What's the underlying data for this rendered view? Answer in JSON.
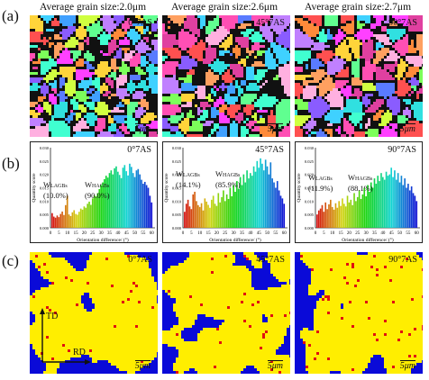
{
  "figure": {
    "row_labels": [
      "(a)",
      "(b)",
      "(c)"
    ],
    "columns": [
      {
        "title": "Average grain size:2.0μm",
        "tag": "0°7AS",
        "scale": "5μm",
        "hist_tag": "0°7AS",
        "lagb_label": "W",
        "lagb_sub": "LAGBs",
        "lagb_pct": "(10.0%)",
        "hagb_label": "W",
        "hagb_sub": "HAGBs",
        "hagb_pct": "(90.0%)",
        "kam_tag": "0°7AS",
        "kam_scale": "5μm"
      },
      {
        "title": "Average grain size:2.6μm",
        "tag": "45°7AS",
        "scale": "5μm",
        "hist_tag": "45°7AS",
        "lagb_label": "W",
        "lagb_sub": "LAGBs",
        "lagb_pct": "(14.1%)",
        "hagb_label": "W",
        "hagb_sub": "HAGBs",
        "hagb_pct": "(85.9%)",
        "kam_tag": "45°7AS",
        "kam_scale": "5μm"
      },
      {
        "title": "Average grain size:2.7μm",
        "tag": "90°7AS",
        "scale": "5μm",
        "hist_tag": "90°7AS",
        "lagb_label": "W",
        "lagb_sub": "LAGBs",
        "lagb_pct": "(11.9%)",
        "hagb_label": "W",
        "hagb_sub": "HAGBs",
        "hagb_pct": "(88.1%)",
        "kam_tag": "90°7AS",
        "kam_scale": "5μm"
      }
    ],
    "hist_axis": {
      "ylabel": "Quantity score",
      "xlabel": "Orientation difference/ (°)",
      "yticks": [
        "0.000",
        "0.005",
        "0.010",
        "0.015",
        "0.020",
        "0.025",
        "0.030"
      ],
      "xticks": [
        "0",
        "5",
        "10",
        "15",
        "20",
        "25",
        "30",
        "35",
        "40",
        "45",
        "50",
        "55",
        "60"
      ]
    },
    "direction_labels": {
      "td": "TD",
      "rd": "RD"
    }
  },
  "chart_data": [
    {
      "type": "bar",
      "xlabel": "Orientation difference/ (°)",
      "ylabel": "Quantity score",
      "ylim": [
        0,
        0.03
      ],
      "xlim": [
        0,
        62
      ],
      "values": [
        0.0055,
        0.0042,
        0.0038,
        0.0046,
        0.004,
        0.0052,
        0.0061,
        0.0048,
        0.0085,
        0.012,
        0.005,
        0.0044,
        0.0058,
        0.0066,
        0.0052,
        0.0049,
        0.006,
        0.0072,
        0.0068,
        0.008,
        0.0075,
        0.009,
        0.0098,
        0.0086,
        0.011,
        0.0122,
        0.0118,
        0.013,
        0.0145,
        0.016,
        0.017,
        0.0182,
        0.0195,
        0.0188,
        0.0205,
        0.0215,
        0.02,
        0.0223,
        0.023,
        0.021,
        0.0198,
        0.0186,
        0.0225,
        0.0235,
        0.0212,
        0.0196,
        0.024,
        0.0228,
        0.0205,
        0.019,
        0.0215,
        0.022,
        0.02,
        0.018,
        0.0165,
        0.0172,
        0.016,
        0.015,
        0.012,
        0.0095
      ]
    },
    {
      "type": "bar",
      "xlabel": "Orientation difference/ (°)",
      "ylabel": "Quantity score",
      "ylim": [
        0,
        0.03
      ],
      "xlim": [
        0,
        62
      ],
      "values": [
        0.006,
        0.009,
        0.0105,
        0.008,
        0.007,
        0.0125,
        0.0135,
        0.01,
        0.0085,
        0.0078,
        0.0092,
        0.0065,
        0.011,
        0.0098,
        0.0086,
        0.0075,
        0.0105,
        0.012,
        0.009,
        0.0082,
        0.013,
        0.0095,
        0.0115,
        0.014,
        0.01,
        0.0125,
        0.0108,
        0.015,
        0.0118,
        0.016,
        0.0135,
        0.0175,
        0.0145,
        0.019,
        0.016,
        0.02,
        0.017,
        0.0215,
        0.0185,
        0.0205,
        0.0195,
        0.023,
        0.021,
        0.025,
        0.0225,
        0.026,
        0.024,
        0.0215,
        0.0255,
        0.023,
        0.02,
        0.0245,
        0.0185,
        0.017,
        0.015,
        0.0175,
        0.014,
        0.012,
        0.011,
        0.009
      ]
    },
    {
      "type": "bar",
      "xlabel": "Orientation difference/ (°)",
      "ylabel": "Quantity score",
      "ylim": [
        0,
        0.03
      ],
      "xlim": [
        0,
        62
      ],
      "values": [
        0.005,
        0.0065,
        0.0072,
        0.0085,
        0.006,
        0.0095,
        0.007,
        0.0088,
        0.0105,
        0.0078,
        0.0068,
        0.0092,
        0.0075,
        0.01,
        0.0082,
        0.011,
        0.009,
        0.008,
        0.012,
        0.0095,
        0.0105,
        0.0085,
        0.013,
        0.01,
        0.0115,
        0.014,
        0.0108,
        0.0125,
        0.015,
        0.0118,
        0.016,
        0.0135,
        0.017,
        0.015,
        0.0185,
        0.0165,
        0.0195,
        0.0175,
        0.0205,
        0.019,
        0.018,
        0.021,
        0.0195,
        0.02,
        0.0225,
        0.019,
        0.0215,
        0.018,
        0.0205,
        0.017,
        0.0195,
        0.016,
        0.0185,
        0.015,
        0.0165,
        0.014,
        0.0155,
        0.013,
        0.012,
        0.01
      ]
    }
  ]
}
